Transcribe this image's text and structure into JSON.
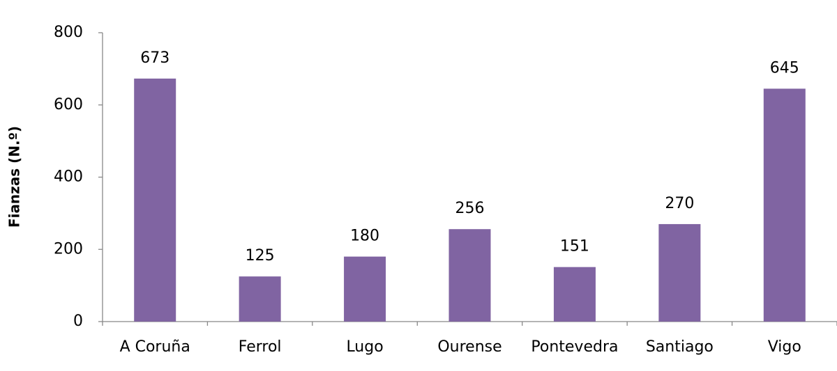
{
  "chart_data": {
    "type": "bar",
    "y_label": "Fianzas (N.º)",
    "categories": [
      "A Coruña",
      "Ferrol",
      "Lugo",
      "Ourense",
      "Pontevedra",
      "Santiago",
      "Vigo"
    ],
    "values": [
      673,
      125,
      180,
      256,
      151,
      270,
      645
    ],
    "color": "#8064a2",
    "ylim": [
      0,
      800
    ],
    "yticks": [
      0,
      200,
      400,
      600,
      800
    ],
    "grid": false
  }
}
